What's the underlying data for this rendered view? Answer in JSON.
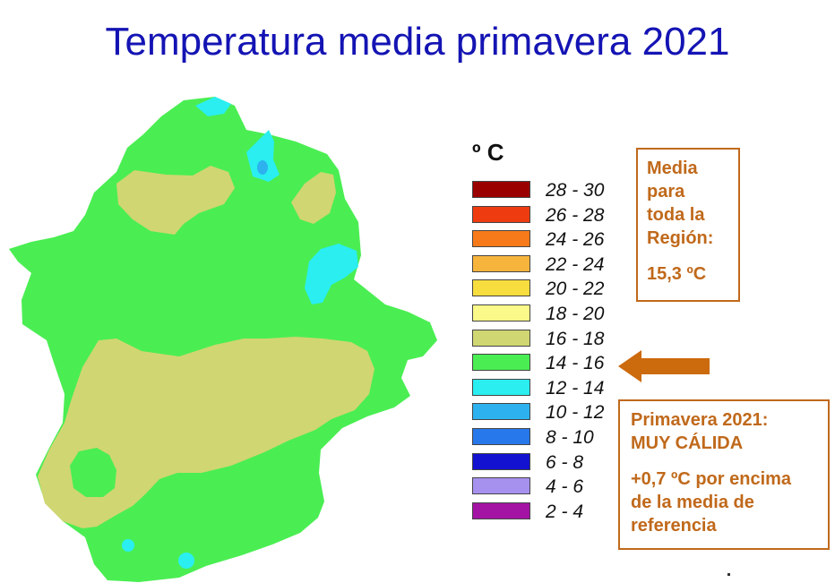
{
  "title": "Temperatura media primavera 2021",
  "legend": {
    "unit": "º C",
    "items": [
      {
        "label": "28 - 30",
        "color": "#9b0000"
      },
      {
        "label": "26 - 28",
        "color": "#ee3c10"
      },
      {
        "label": "24 - 26",
        "color": "#f77a1a"
      },
      {
        "label": "22 - 24",
        "color": "#f7b43d"
      },
      {
        "label": "20 - 22",
        "color": "#f7dd3e"
      },
      {
        "label": "18 - 20",
        "color": "#fbf989"
      },
      {
        "label": "16 - 18",
        "color": "#d0d672"
      },
      {
        "label": "14 - 16",
        "color": "#4aee52"
      },
      {
        "label": "12 - 14",
        "color": "#2aeef0"
      },
      {
        "label": "10 - 12",
        "color": "#2db2ef"
      },
      {
        "label": "8 - 10",
        "color": "#2778ea"
      },
      {
        "label": "6 - 8",
        "color": "#1212d0"
      },
      {
        "label": "4 - 6",
        "color": "#a791ef"
      },
      {
        "label": "2 - 4",
        "color": "#a414a4"
      }
    ]
  },
  "region_box": {
    "lines": [
      "Media",
      "para",
      "toda la",
      "Región:"
    ],
    "value": "15,3 ºC"
  },
  "season_box": {
    "line1": "Primavera 2021:",
    "line2": "MUY CÁLIDA",
    "line3": "+0,7 ºC por encima",
    "line4": "de la media de",
    "line5": "referencia"
  },
  "arrow_color": "#cc6a0e",
  "box_color": "#c0691b",
  "map_colors": {
    "warm": "#d0d672",
    "mild": "#4aee52",
    "cool": "#2aeef0",
    "cold": "#2db2ef"
  }
}
